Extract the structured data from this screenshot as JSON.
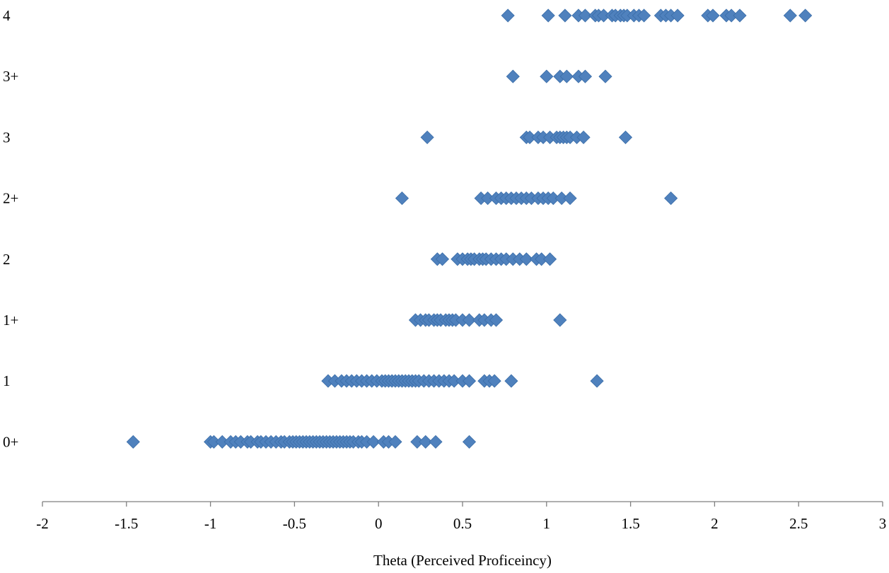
{
  "chart_data": {
    "type": "scatter",
    "title": "",
    "xlabel": "Theta (Perceived Proficeincy)",
    "ylabel": "",
    "xlim": [
      -2,
      3
    ],
    "x_ticks": [
      "-2",
      "-1.5",
      "-1",
      "-0.5",
      "0",
      "0.5",
      "1",
      "1.5",
      "2",
      "2.5",
      "3"
    ],
    "categories": [
      "0+",
      "1",
      "1+",
      "2",
      "2+",
      "3",
      "3+",
      "4"
    ],
    "grid": false,
    "legend": "none",
    "marker": "diamond",
    "marker_color": "#4F81BD",
    "series": [
      {
        "category": "0+",
        "x": [
          -1.46,
          -1.0,
          -0.98,
          -0.93,
          -0.88,
          -0.85,
          -0.82,
          -0.78,
          -0.76,
          -0.72,
          -0.7,
          -0.67,
          -0.64,
          -0.61,
          -0.58,
          -0.56,
          -0.53,
          -0.51,
          -0.49,
          -0.47,
          -0.45,
          -0.43,
          -0.41,
          -0.39,
          -0.37,
          -0.35,
          -0.33,
          -0.31,
          -0.29,
          -0.27,
          -0.25,
          -0.23,
          -0.21,
          -0.19,
          -0.17,
          -0.15,
          -0.12,
          -0.1,
          -0.07,
          -0.03,
          0.03,
          0.06,
          0.1,
          0.23,
          0.28,
          0.34,
          0.54
        ]
      },
      {
        "category": "1",
        "x": [
          -0.3,
          -0.26,
          -0.22,
          -0.19,
          -0.16,
          -0.13,
          -0.1,
          -0.07,
          -0.04,
          -0.01,
          0.02,
          0.04,
          0.06,
          0.08,
          0.1,
          0.12,
          0.14,
          0.16,
          0.18,
          0.2,
          0.22,
          0.24,
          0.27,
          0.3,
          0.33,
          0.36,
          0.39,
          0.42,
          0.45,
          0.5,
          0.54,
          0.63,
          0.66,
          0.69,
          0.79,
          1.3
        ]
      },
      {
        "category": "1+",
        "x": [
          0.22,
          0.25,
          0.28,
          0.3,
          0.33,
          0.35,
          0.37,
          0.4,
          0.42,
          0.44,
          0.46,
          0.5,
          0.54,
          0.6,
          0.63,
          0.67,
          0.7,
          1.08
        ]
      },
      {
        "category": "2",
        "x": [
          0.35,
          0.38,
          0.47,
          0.5,
          0.53,
          0.55,
          0.57,
          0.6,
          0.62,
          0.64,
          0.67,
          0.7,
          0.73,
          0.76,
          0.8,
          0.84,
          0.88,
          0.94,
          0.97,
          1.02
        ]
      },
      {
        "category": "2+",
        "x": [
          0.14,
          0.61,
          0.65,
          0.7,
          0.73,
          0.76,
          0.79,
          0.82,
          0.85,
          0.88,
          0.91,
          0.95,
          0.98,
          1.01,
          1.04,
          1.09,
          1.14,
          1.74
        ]
      },
      {
        "category": "3",
        "x": [
          0.29,
          0.88,
          0.9,
          0.95,
          0.98,
          1.02,
          1.06,
          1.08,
          1.1,
          1.12,
          1.14,
          1.18,
          1.22,
          1.47
        ]
      },
      {
        "category": "3+",
        "x": [
          0.8,
          1.0,
          1.08,
          1.12,
          1.19,
          1.23,
          1.35
        ]
      },
      {
        "category": "4",
        "x": [
          0.77,
          1.01,
          1.11,
          1.19,
          1.23,
          1.29,
          1.31,
          1.34,
          1.39,
          1.41,
          1.44,
          1.46,
          1.48,
          1.52,
          1.55,
          1.58,
          1.68,
          1.71,
          1.74,
          1.78,
          1.96,
          1.99,
          2.07,
          2.1,
          2.15,
          2.45,
          2.54
        ]
      }
    ]
  }
}
